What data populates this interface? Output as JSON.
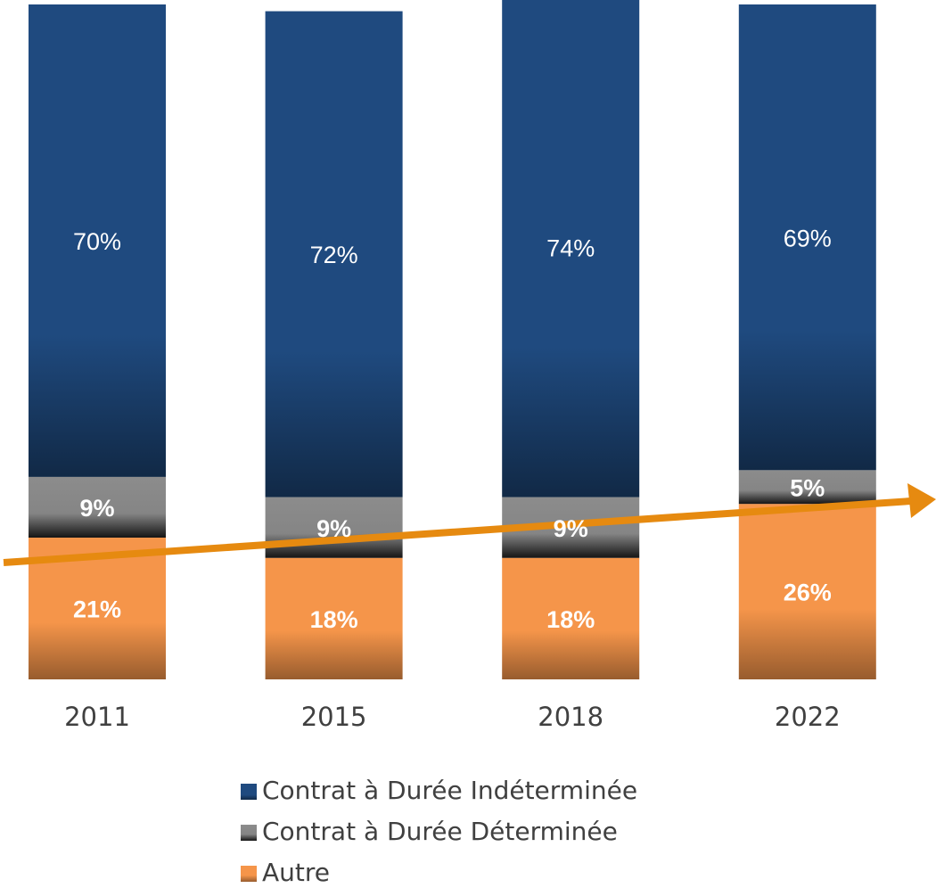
{
  "chart_data": {
    "type": "stacked_bar",
    "categories": [
      "2011",
      "2015",
      "2018",
      "2022"
    ],
    "series": [
      {
        "name": "Contrat à Durée Indéterminée",
        "color": "#1f4a7f",
        "values": [
          70,
          72,
          74,
          69
        ],
        "value_labels": [
          "70%",
          "72%",
          "74%",
          "69%"
        ]
      },
      {
        "name": "Contrat à Durée Déterminée",
        "color": "#8c8c8c",
        "values": [
          9,
          9,
          9,
          5
        ],
        "value_labels": [
          "9%",
          "9%",
          "9%",
          "5%"
        ]
      },
      {
        "name": "Autre",
        "color": "#f5954a",
        "values": [
          21,
          18,
          18,
          26
        ],
        "value_labels": [
          "21%",
          "18%",
          "18%",
          "26%"
        ]
      }
    ],
    "ylim": [
      0,
      100
    ],
    "legend": "bottom"
  }
}
